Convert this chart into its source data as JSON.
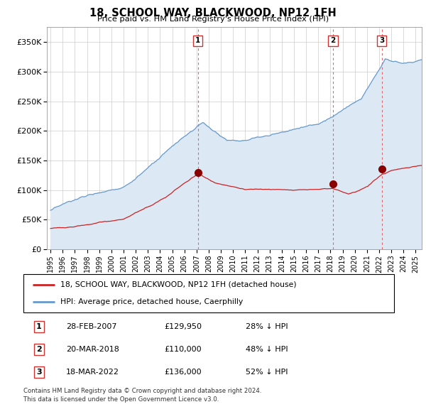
{
  "title": "18, SCHOOL WAY, BLACKWOOD, NP12 1FH",
  "subtitle": "Price paid vs. HM Land Registry's House Price Index (HPI)",
  "transactions": [
    {
      "num": "1",
      "date": "28-FEB-2007",
      "price": "£129,950",
      "pct": "28% ↓ HPI",
      "x_year": 2007.12,
      "y_val": 129950
    },
    {
      "num": "2",
      "date": "20-MAR-2018",
      "price": "£110,000",
      "pct": "48% ↓ HPI",
      "x_year": 2018.21,
      "y_val": 110000
    },
    {
      "num": "3",
      "date": "18-MAR-2022",
      "price": "£136,000",
      "pct": "52% ↓ HPI",
      "x_year": 2022.21,
      "y_val": 136000
    }
  ],
  "legend_line1": "18, SCHOOL WAY, BLACKWOOD, NP12 1FH (detached house)",
  "legend_line2": "HPI: Average price, detached house, Caerphilly",
  "footer1": "Contains HM Land Registry data © Crown copyright and database right 2024.",
  "footer2": "This data is licensed under the Open Government Licence v3.0.",
  "hpi_color": "#6699cc",
  "hpi_fill_color": "#dde8f5",
  "price_color": "#cc2222",
  "marker_color": "#880000",
  "dashed_color": "#dd6666",
  "ylim": [
    0,
    375000
  ],
  "yticks": [
    0,
    50000,
    100000,
    150000,
    200000,
    250000,
    300000,
    350000
  ],
  "ytick_labels": [
    "£0",
    "£50K",
    "£100K",
    "£150K",
    "£200K",
    "£250K",
    "£300K",
    "£350K"
  ],
  "xlim_left": 1994.7,
  "xlim_right": 2025.5,
  "start_year": 1995,
  "end_year": 2025
}
